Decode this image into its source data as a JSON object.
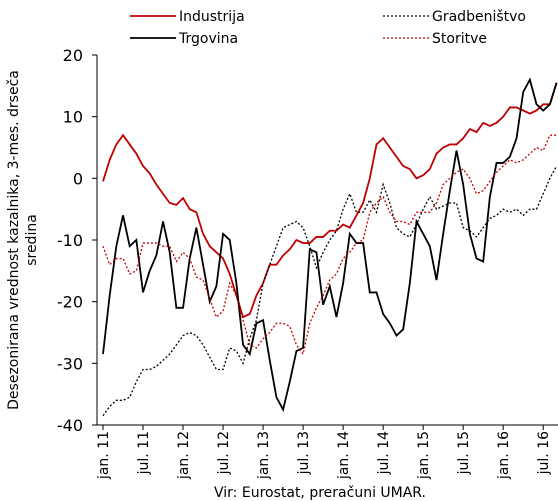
{
  "chart_data": {
    "type": "line",
    "ylabel": [
      "Desezonirana vrednost kazalnika, 3-mes. drseča",
      "sredina"
    ],
    "source": "Vir: Eurostat, preračuni UMAR.",
    "categories": [
      "jan. 11",
      null,
      null,
      null,
      null,
      null,
      "jul. 11",
      null,
      null,
      null,
      null,
      null,
      "jan. 12",
      null,
      null,
      null,
      null,
      null,
      "jul. 12",
      null,
      null,
      null,
      null,
      null,
      "jan. 13",
      null,
      null,
      null,
      null,
      null,
      "jul. 13",
      null,
      null,
      null,
      null,
      null,
      "jan. 14",
      null,
      null,
      null,
      null,
      null,
      "jul. 14",
      null,
      null,
      null,
      null,
      null,
      "jan. 15",
      null,
      null,
      null,
      null,
      null,
      "jul. 15",
      null,
      null,
      null,
      null,
      null,
      "jan. 16",
      null,
      null,
      null,
      null,
      null,
      "jul. 16",
      null,
      null
    ],
    "ylim": [
      -40,
      20
    ],
    "yticks": [
      -40,
      -30,
      -20,
      -10,
      0,
      10,
      20
    ],
    "series": [
      {
        "name": "Industrija",
        "color": "#c00000",
        "style": "solid",
        "values": [
          -0.5,
          3,
          5.5,
          7,
          5.5,
          4,
          2,
          0.8,
          -1,
          -2.5,
          -4,
          -4.3,
          -3.2,
          -5,
          -5.5,
          -9,
          -11,
          -12,
          -13,
          -15.5,
          -19,
          -22.5,
          -22,
          -19,
          -17,
          -14,
          -14,
          -12.5,
          -11.5,
          -10,
          -10.5,
          -10.5,
          -9.5,
          -9.5,
          -8.5,
          -8.5,
          -7.5,
          -8,
          -6,
          -4,
          0,
          5.5,
          6.5,
          5,
          3.5,
          2,
          1.5,
          0,
          0.5,
          1.5,
          4,
          5,
          5.5,
          5.5,
          6.5,
          8,
          7.5,
          9,
          8.5,
          9,
          10,
          11.5,
          11.5,
          11,
          10.5,
          11,
          12,
          12,
          15.5
        ]
      },
      {
        "name": "Gradbeništvo",
        "color": "#000000",
        "style": "dotted",
        "values": [
          -38.5,
          -37,
          -36,
          -36,
          -35.5,
          -33,
          -31,
          -31,
          -30.5,
          -29.5,
          -28.5,
          -27,
          -25.5,
          -25,
          -25.5,
          -27,
          -29,
          -31,
          -31,
          -27.5,
          -28,
          -30,
          -26,
          -23,
          -17,
          -14,
          -11,
          -8,
          -7.5,
          -7,
          -8,
          -11,
          -14.5,
          -12,
          -10,
          -8.5,
          -5,
          -2.5,
          -5.5,
          -5.5,
          -3.5,
          -5.5,
          -1,
          -4,
          -8,
          -9,
          -9.5,
          -7.5,
          -5,
          -3,
          -5,
          -4.5,
          -4,
          -4,
          -8,
          -8.5,
          -9.5,
          -8,
          -6.5,
          -6,
          -5,
          -5.5,
          -5,
          -6,
          -5,
          -5,
          -2.5,
          0,
          2
        ]
      },
      {
        "name": "Trgovina",
        "color": "#000000",
        "style": "solid",
        "values": [
          -28.5,
          -19,
          -11,
          -6,
          -11,
          -10,
          -18.5,
          -15,
          -12.5,
          -7,
          -12,
          -21,
          -21,
          -13,
          -8,
          -14,
          -20,
          -17.5,
          -9,
          -10,
          -17,
          -27,
          -28.5,
          -23.5,
          -23,
          -29.5,
          -35.5,
          -37.5,
          -33,
          -28,
          -27.5,
          -11.5,
          -12,
          -20.5,
          -17.5,
          -22.5,
          -17,
          -9,
          -10.5,
          -10.5,
          -18.5,
          -18.5,
          -22,
          -23.5,
          -25.5,
          -24.5,
          -17,
          -7,
          -9,
          -11,
          -16.5,
          -9,
          -2,
          4.5,
          -1,
          -9,
          -13,
          -13.5,
          -3,
          2.5,
          2.5,
          3.5,
          6.5,
          14,
          16,
          12,
          11,
          12,
          15.5
        ]
      },
      {
        "name": "Storitve",
        "color": "#c00000",
        "style": "dotted",
        "values": [
          -11,
          -14,
          -13,
          -13,
          -15.5,
          -15,
          -10.5,
          -10.5,
          -10.5,
          -11,
          -11,
          -13.5,
          -12,
          -13,
          -16,
          -16.5,
          -19.5,
          -22.5,
          -21.5,
          -17,
          -19,
          -23,
          -27,
          -27.5,
          -26,
          -25,
          -23.5,
          -23.5,
          -24,
          -27,
          -28.5,
          -23.5,
          -21,
          -19,
          -16.5,
          -15.5,
          -13,
          -12,
          -10.5,
          -10,
          -5.5,
          -4,
          -3,
          -5.5,
          -7,
          -7,
          -7.5,
          -5.5,
          -5.5,
          -5.5,
          -4,
          -1,
          0,
          1,
          1.5,
          0,
          -2.5,
          -2,
          -0.5,
          1,
          2,
          3,
          2.5,
          3,
          4,
          5,
          4.5,
          7,
          7
        ]
      }
    ]
  }
}
